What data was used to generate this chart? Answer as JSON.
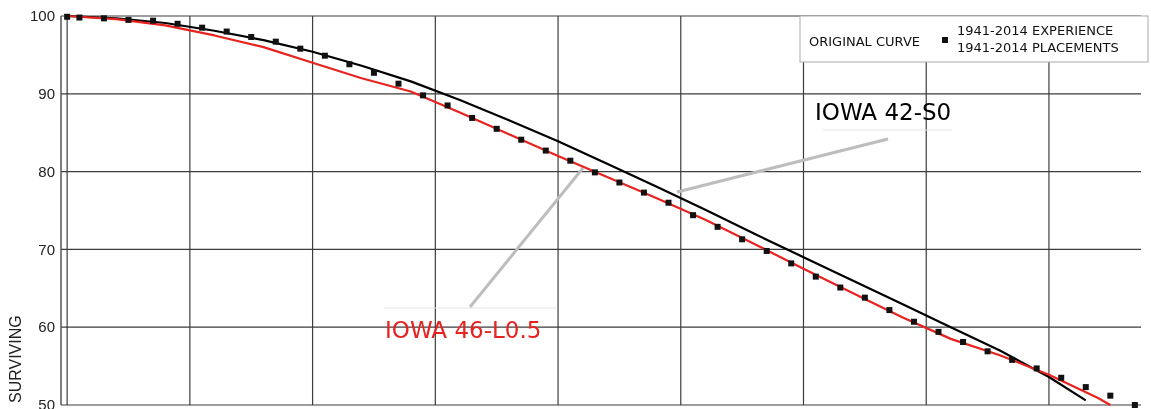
{
  "chart_data": {
    "type": "line",
    "ylabel": "SURVIVING",
    "legend_title": "ORIGINAL CURVE",
    "legend": "top right",
    "grid": true,
    "tick_labels": "y",
    "categories": [
      null,
      null,
      null,
      null,
      null,
      null,
      null,
      null,
      null,
      null,
      null,
      null,
      null,
      null,
      null,
      null,
      null,
      null,
      null,
      null,
      null,
      null,
      null,
      null,
      null,
      null,
      null,
      null,
      null,
      null,
      null,
      null,
      null,
      null,
      null,
      null,
      null,
      null,
      null,
      null,
      null,
      null,
      null,
      null,
      null,
      null,
      null,
      null,
      null,
      null,
      null,
      null,
      null,
      null,
      null,
      null,
      null,
      null,
      null,
      null,
      null,
      null,
      null,
      null,
      null,
      null,
      null,
      null,
      null,
      null,
      null,
      null,
      null,
      null,
      null,
      null,
      null,
      null,
      null,
      null,
      null,
      null,
      null,
      null,
      null,
      null,
      null,
      null
    ],
    "ylim": [
      50,
      100
    ],
    "yticks": [
      50,
      60,
      70,
      80,
      90,
      100
    ],
    "series": [
      {
        "name": "IOWA 42-S0",
        "type": "line",
        "color": "#000000",
        "values": [
          100,
          null,
          null,
          null,
          99.7,
          null,
          null,
          null,
          99.1,
          null,
          null,
          null,
          98.1,
          null,
          null,
          null,
          96.9,
          null,
          null,
          null,
          95.4,
          null,
          null,
          null,
          93.6,
          null,
          null,
          null,
          91.6,
          null,
          null,
          null,
          89.2,
          null,
          null,
          null,
          86.6,
          null,
          null,
          null,
          83.9,
          null,
          null,
          null,
          81.0,
          null,
          null,
          null,
          78.1,
          null,
          null,
          null,
          75.1,
          null,
          null,
          null,
          72.0,
          null,
          null,
          null,
          69.0,
          null,
          null,
          null,
          66.0,
          null,
          null,
          null,
          63.0,
          null,
          null,
          null,
          60.0,
          null,
          null,
          null,
          57.0,
          null,
          null,
          null,
          53.6,
          null,
          null,
          50.6,
          null,
          null,
          null,
          null
        ]
      },
      {
        "name": "IOWA 46-L0.5",
        "type": "line",
        "color": "#e8231f",
        "values": [
          100,
          null,
          null,
          null,
          99.6,
          null,
          null,
          null,
          98.8,
          null,
          null,
          null,
          97.5,
          null,
          null,
          null,
          96.0,
          null,
          null,
          null,
          94.0,
          null,
          null,
          null,
          92.0,
          null,
          null,
          null,
          90.3,
          null,
          null,
          null,
          87.6,
          null,
          null,
          null,
          84.8,
          null,
          null,
          null,
          82.0,
          null,
          null,
          null,
          79.3,
          null,
          null,
          null,
          76.6,
          null,
          null,
          null,
          73.8,
          null,
          null,
          null,
          70.7,
          null,
          null,
          null,
          67.5,
          null,
          null,
          null,
          64.4,
          null,
          null,
          null,
          61.3,
          null,
          null,
          null,
          58.5,
          null,
          null,
          null,
          56.4,
          null,
          null,
          null,
          53.9,
          null,
          null,
          null,
          50.9,
          50.0,
          null,
          null
        ]
      },
      {
        "name": "1941-2014 EXPERIENCE\n1941-2014 PLACEMENTS",
        "type": "scatter",
        "marker": "square",
        "color": "#111111",
        "values": [
          99.9,
          99.8,
          null,
          99.7,
          null,
          99.5,
          null,
          99.4,
          null,
          99.0,
          null,
          98.5,
          null,
          98.0,
          null,
          97.3,
          null,
          96.7,
          null,
          95.8,
          null,
          94.9,
          null,
          93.8,
          null,
          92.7,
          null,
          91.3,
          null,
          89.8,
          null,
          88.5,
          null,
          86.9,
          null,
          85.5,
          null,
          84.1,
          null,
          82.7,
          null,
          81.4,
          null,
          79.9,
          null,
          78.6,
          null,
          77.3,
          null,
          76.0,
          null,
          74.4,
          null,
          72.9,
          null,
          71.3,
          null,
          69.8,
          null,
          68.2,
          null,
          66.5,
          null,
          65.1,
          null,
          63.8,
          null,
          62.2,
          null,
          60.7,
          null,
          59.4,
          null,
          58.1,
          null,
          56.9,
          null,
          55.8,
          null,
          54.7,
          null,
          53.5,
          null,
          52.3,
          null,
          51.2,
          null,
          50.0
        ]
      }
    ]
  }
}
